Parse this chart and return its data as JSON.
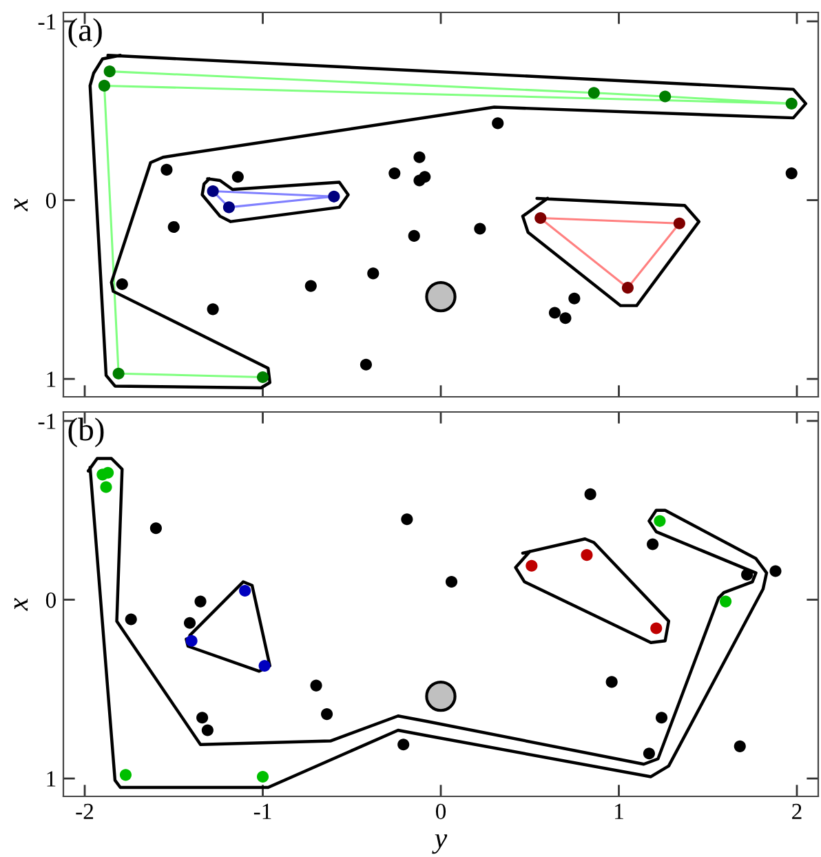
{
  "chart_data": [
    {
      "type": "scatter",
      "ylabel": "x",
      "annotations": [
        "(a)"
      ],
      "tick_labels": "y",
      "legend": false,
      "grid": false,
      "xlim": [
        -2.12,
        2.12
      ],
      "xticks": [
        -2,
        -1,
        0,
        1,
        2
      ],
      "ylim": [
        1.1,
        -1.05
      ],
      "yticks": [
        {
          "value": -1,
          "label": "-1"
        },
        0,
        1
      ],
      "series": [
        {
          "type": "line",
          "color": "#80ff80",
          "x": [
            -1.0,
            -1.81,
            -1.89,
            1.97,
            1.26,
            0.86,
            -1.86
          ],
          "values": [
            0.99,
            0.97,
            -0.64,
            -0.54,
            -0.58,
            -0.6,
            -0.72
          ]
        },
        {
          "type": "line",
          "color": "#8080ff",
          "x": [
            -1.28,
            -0.6,
            -1.19,
            -1.27
          ],
          "values": [
            -0.05,
            -0.02,
            0.04,
            -0.04
          ]
        },
        {
          "type": "line",
          "color": "#ff8080",
          "x": [
            0.56,
            1.34,
            1.05,
            0.57
          ],
          "values": [
            0.1,
            0.13,
            0.49,
            0.11
          ]
        },
        {
          "type": "line",
          "color": "#000000",
          "x": [
            -1.87,
            1.98,
            2.05,
            1.98,
            0.3,
            -1.56,
            -1.63,
            -1.85,
            -1.84,
            -0.97,
            -0.96,
            -1.01,
            -1.83,
            -1.88,
            -1.97,
            -1.95,
            -1.9,
            -1.8
          ],
          "values": [
            -0.81,
            -0.62,
            -0.54,
            -0.46,
            -0.52,
            -0.24,
            -0.21,
            0.46,
            0.51,
            0.94,
            1.02,
            1.05,
            1.04,
            0.98,
            -0.64,
            -0.71,
            -0.79,
            -0.81
          ]
        },
        {
          "type": "line",
          "color": "#000000",
          "x": [
            -1.31,
            -1.24,
            -1.17,
            -0.57,
            -0.52,
            -0.57,
            -1.18,
            -1.24,
            -1.34,
            -1.33,
            -1.3
          ],
          "values": [
            -0.12,
            -0.11,
            -0.06,
            -0.1,
            -0.03,
            0.04,
            0.12,
            0.09,
            -0.03,
            -0.09,
            -0.12
          ]
        },
        {
          "type": "line",
          "color": "#000000",
          "x": [
            0.54,
            1.37,
            1.45,
            1.1,
            1.01,
            0.49,
            0.46,
            0.6
          ],
          "values": [
            -0.01,
            0.03,
            0.12,
            0.59,
            0.59,
            0.18,
            0.09,
            -0.01
          ]
        },
        {
          "type": "scatter",
          "color": "#000000",
          "x": [
            -1.54,
            -1.14,
            -1.5,
            -1.79,
            -1.28,
            -0.26,
            -0.12,
            -0.12,
            -0.09,
            -0.15,
            -0.38,
            -0.73,
            -0.42,
            0.32,
            0.22,
            0.75,
            0.64,
            0.7,
            1.97
          ],
          "values": [
            -0.17,
            -0.13,
            0.15,
            0.47,
            0.61,
            -0.15,
            -0.24,
            -0.11,
            -0.13,
            0.2,
            0.41,
            0.48,
            0.92,
            -0.43,
            0.16,
            0.55,
            0.63,
            0.66,
            -0.15
          ]
        },
        {
          "type": "scatter",
          "color": "#007f00",
          "x": [
            -1.86,
            -1.89,
            -1.81,
            -1.0,
            0.86,
            1.26,
            1.97
          ],
          "values": [
            -0.72,
            -0.64,
            0.97,
            0.99,
            -0.6,
            -0.58,
            -0.54
          ]
        },
        {
          "type": "scatter",
          "color": "#00007f",
          "x": [
            -1.28,
            -1.19,
            -0.6
          ],
          "values": [
            -0.05,
            0.04,
            -0.02
          ]
        },
        {
          "type": "scatter",
          "color": "#7f0000",
          "x": [
            0.56,
            1.34,
            1.05
          ],
          "values": [
            0.1,
            0.13,
            0.49
          ]
        },
        {
          "type": "bubble",
          "color": "#c0c0c0",
          "x": [
            0.0
          ],
          "values": [
            0.54
          ],
          "sizes": [
            1
          ]
        }
      ]
    },
    {
      "type": "scatter",
      "xlabel": "y",
      "ylabel": "x",
      "annotations": [
        "(b)"
      ],
      "legend": false,
      "grid": false,
      "xlim": [
        -2.12,
        2.12
      ],
      "xticks": [
        {
          "value": -2,
          "label": "-2"
        },
        {
          "value": -1,
          "label": "-1"
        },
        0,
        1,
        2
      ],
      "ylim": [
        1.1,
        -1.05
      ],
      "yticks": [
        {
          "value": -1,
          "label": "-1"
        },
        0,
        1
      ],
      "series": [
        {
          "type": "line",
          "color": "#000000",
          "x": [
            -1.98,
            -1.93,
            -1.85,
            -1.79,
            -1.82,
            -1.35,
            -0.62,
            -0.24,
            -0.08,
            1.14,
            1.22,
            1.56,
            1.59,
            1.75,
            1.77,
            1.72,
            1.21,
            1.17,
            1.21,
            1.26,
            1.77,
            1.83,
            1.81,
            1.28,
            1.18,
            -0.08,
            -0.24,
            -0.97,
            -1.8,
            -1.83,
            -1.97
          ],
          "values": [
            -0.72,
            -0.79,
            -0.79,
            -0.73,
            0.12,
            0.81,
            0.79,
            0.65,
            0.68,
            0.92,
            0.89,
            -0.01,
            -0.04,
            -0.1,
            -0.15,
            -0.17,
            -0.38,
            -0.44,
            -0.5,
            -0.5,
            -0.23,
            -0.15,
            -0.06,
            0.93,
            0.99,
            0.76,
            0.73,
            1.05,
            1.05,
            1.01,
            -0.74
          ]
        },
        {
          "type": "line",
          "color": "#000000",
          "x": [
            -1.43,
            -1.42,
            -1.02,
            -0.96,
            -1.06,
            -1.11,
            -1.41
          ],
          "values": [
            0.22,
            0.26,
            0.4,
            0.37,
            -0.08,
            -0.1,
            0.2
          ]
        },
        {
          "type": "line",
          "color": "#000000",
          "x": [
            0.46,
            0.81,
            0.86,
            1.28,
            1.26,
            1.18,
            0.47,
            0.42,
            0.5
          ],
          "values": [
            -0.26,
            -0.34,
            -0.32,
            0.12,
            0.23,
            0.24,
            -0.1,
            -0.18,
            -0.27
          ]
        },
        {
          "type": "scatter",
          "color": "#000000",
          "x": [
            -1.6,
            -1.74,
            -1.35,
            -1.41,
            -0.7,
            -1.34,
            -1.31,
            -0.64,
            -0.21,
            -0.19,
            0.84,
            0.06,
            1.19,
            1.72,
            1.88,
            0.96,
            1.24,
            1.17,
            1.68
          ],
          "values": [
            -0.4,
            0.11,
            0.01,
            0.13,
            0.48,
            0.66,
            0.73,
            0.64,
            0.81,
            -0.45,
            -0.59,
            -0.1,
            -0.31,
            -0.14,
            -0.16,
            0.46,
            0.66,
            0.86,
            0.82
          ]
        },
        {
          "type": "scatter",
          "color": "#00bf00",
          "x": [
            -1.9,
            -1.87,
            -1.88,
            -1.77,
            -1.0,
            1.23,
            1.6
          ],
          "values": [
            -0.7,
            -0.71,
            -0.63,
            0.98,
            0.99,
            -0.44,
            0.01
          ]
        },
        {
          "type": "scatter",
          "color": "#0000bf",
          "x": [
            -1.1,
            -1.4,
            -0.99
          ],
          "values": [
            -0.05,
            0.23,
            0.37
          ]
        },
        {
          "type": "scatter",
          "color": "#bf0000",
          "x": [
            0.51,
            0.82,
            1.21
          ],
          "values": [
            -0.19,
            -0.25,
            0.16
          ]
        },
        {
          "type": "bubble",
          "color": "#c0c0c0",
          "x": [
            0.0
          ],
          "values": [
            0.54
          ],
          "sizes": [
            1
          ]
        }
      ]
    }
  ]
}
